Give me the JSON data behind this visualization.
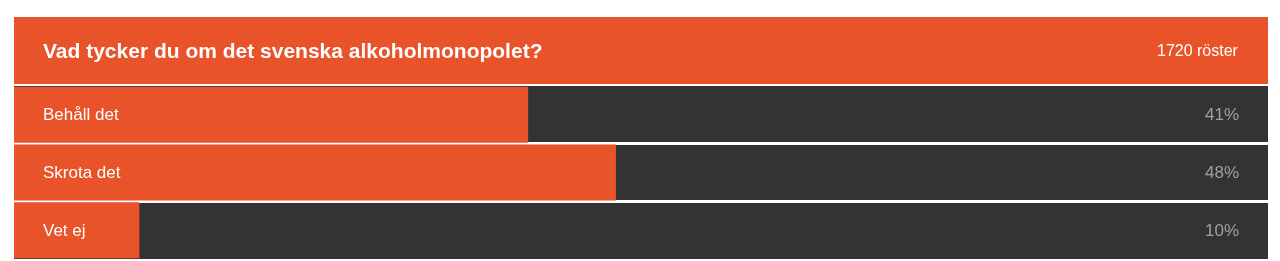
{
  "chart_data": {
    "type": "bar",
    "orientation": "horizontal",
    "title": "Vad tycker du om det svenska alkoholmonopolet?",
    "annotations": [
      "1720 röster"
    ],
    "categories": [
      "Behåll det",
      "Skrota det",
      "Vet ej"
    ],
    "values": [
      41,
      48,
      10
    ],
    "color": "#e9532a",
    "value_labels": [
      "41%",
      "48%",
      "10%"
    ],
    "xlim": [
      0,
      100
    ],
    "legend": false
  }
}
